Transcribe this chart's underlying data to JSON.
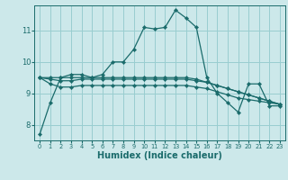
{
  "xlabel": "Humidex (Indice chaleur)",
  "ylabel": "",
  "bg_color": "#cce8ea",
  "grid_color": "#99cdd0",
  "line_color": "#1a6b6b",
  "xlim": [
    -0.5,
    23.5
  ],
  "ylim": [
    7.5,
    11.8
  ],
  "yticks": [
    8,
    9,
    10,
    11
  ],
  "xticks": [
    0,
    1,
    2,
    3,
    4,
    5,
    6,
    7,
    8,
    9,
    10,
    11,
    12,
    13,
    14,
    15,
    16,
    17,
    18,
    19,
    20,
    21,
    22,
    23
  ],
  "series": [
    [
      7.7,
      8.7,
      9.5,
      9.6,
      9.6,
      9.5,
      9.6,
      10.0,
      10.0,
      10.4,
      11.1,
      11.05,
      11.1,
      11.65,
      11.4,
      11.1,
      9.5,
      9.0,
      8.7,
      8.4,
      9.3,
      9.3,
      8.6,
      8.6
    ],
    [
      9.5,
      9.5,
      9.5,
      9.5,
      9.5,
      9.5,
      9.5,
      9.5,
      9.5,
      9.5,
      9.5,
      9.5,
      9.5,
      9.5,
      9.5,
      9.45,
      9.35,
      9.25,
      9.15,
      9.05,
      8.95,
      8.85,
      8.75,
      8.65
    ],
    [
      9.5,
      9.45,
      9.4,
      9.4,
      9.45,
      9.45,
      9.45,
      9.45,
      9.45,
      9.45,
      9.45,
      9.45,
      9.45,
      9.45,
      9.45,
      9.4,
      9.35,
      9.25,
      9.15,
      9.05,
      8.95,
      8.85,
      8.75,
      8.65
    ],
    [
      9.5,
      9.3,
      9.2,
      9.2,
      9.25,
      9.25,
      9.25,
      9.25,
      9.25,
      9.25,
      9.25,
      9.25,
      9.25,
      9.25,
      9.25,
      9.2,
      9.15,
      9.05,
      8.95,
      8.85,
      8.8,
      8.75,
      8.7,
      8.65
    ]
  ],
  "font_size": 7,
  "tick_font_size": 6,
  "marker": "D",
  "marker_size": 2.2,
  "linewidth": 0.9
}
